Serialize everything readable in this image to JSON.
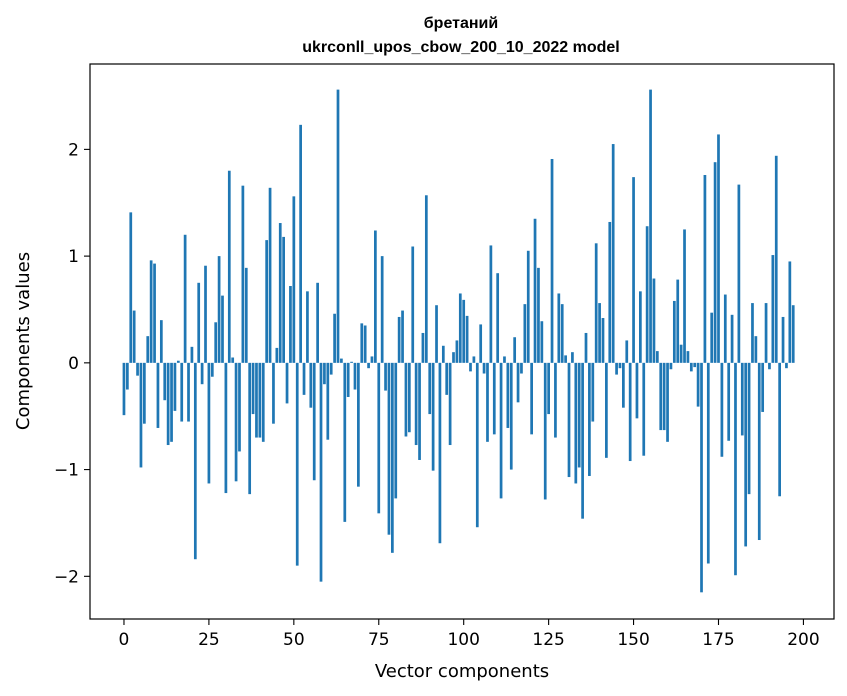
{
  "chart_data": {
    "type": "bar",
    "title_line1": "бретаний",
    "title_line2": "ukrconll_upos_cbow_200_10_2022 model",
    "xlabel": "Vector components",
    "ylabel": "Components values",
    "xlim": [
      -10,
      209
    ],
    "ylim": [
      -2.4,
      2.8
    ],
    "xticks": [
      0,
      25,
      50,
      75,
      100,
      125,
      150,
      175,
      200
    ],
    "xtick_labels": [
      "0",
      "25",
      "50",
      "75",
      "100",
      "125",
      "150",
      "175",
      "200"
    ],
    "yticks": [
      -2,
      -1,
      0,
      1,
      2
    ],
    "ytick_labels": [
      "−2",
      "−1",
      "0",
      "1",
      "2"
    ],
    "bar_color": "#1f77b4",
    "values": [
      -0.49,
      -0.25,
      1.41,
      0.49,
      -0.12,
      -0.98,
      -0.57,
      0.25,
      0.96,
      0.93,
      -0.61,
      0.4,
      -0.35,
      -0.77,
      -0.74,
      -0.45,
      0.02,
      -0.55,
      1.2,
      -0.55,
      0.15,
      -1.84,
      0.75,
      -0.2,
      0.91,
      -1.13,
      -0.13,
      0.38,
      1.0,
      0.63,
      -1.22,
      1.8,
      0.05,
      -1.11,
      -0.83,
      1.66,
      0.89,
      -1.23,
      -0.48,
      -0.7,
      -0.7,
      -0.74,
      1.15,
      1.64,
      -0.57,
      0.14,
      1.31,
      1.18,
      -0.38,
      0.72,
      1.56,
      -1.9,
      2.23,
      -0.3,
      0.67,
      -0.42,
      -1.1,
      0.75,
      -2.05,
      -0.2,
      -0.72,
      -0.11,
      0.46,
      2.56,
      0.04,
      -1.49,
      -0.32,
      0.01,
      -0.25,
      -1.16,
      0.37,
      0.35,
      -0.05,
      0.06,
      1.24,
      -1.41,
      1.0,
      -0.26,
      -1.61,
      -1.78,
      -1.27,
      0.43,
      0.49,
      -0.69,
      -0.65,
      1.09,
      -0.77,
      -0.91,
      0.28,
      1.57,
      -0.48,
      -1.01,
      0.54,
      -1.69,
      0.16,
      -0.3,
      -0.77,
      0.1,
      0.21,
      0.65,
      0.59,
      0.44,
      -0.08,
      0.06,
      -1.54,
      0.36,
      -0.1,
      -0.74,
      1.1,
      -0.67,
      0.84,
      -1.27,
      0.06,
      -0.61,
      -1.0,
      0.24,
      -0.37,
      -0.1,
      0.55,
      1.05,
      -0.67,
      1.35,
      0.89,
      0.39,
      -1.28,
      -0.48,
      1.91,
      -0.7,
      0.65,
      0.55,
      0.07,
      -1.07,
      0.1,
      -1.13,
      -0.98,
      -1.46,
      0.28,
      -1.06,
      -0.55,
      1.12,
      0.56,
      0.42,
      -0.89,
      1.32,
      2.05,
      -0.11,
      -0.05,
      -0.42,
      0.21,
      -0.92,
      1.74,
      -0.52,
      0.67,
      -0.87,
      1.28,
      2.56,
      0.79,
      0.11,
      -0.63,
      -0.63,
      -0.74,
      -0.06,
      0.58,
      0.78,
      0.17,
      1.25,
      0.11,
      -0.08,
      -0.04,
      -0.41,
      -2.15,
      1.76,
      -1.88,
      0.47,
      1.88,
      2.14,
      -0.88,
      0.64,
      -0.73,
      0.45,
      -1.99,
      1.67,
      -0.68,
      -1.72,
      -1.23,
      0.56,
      0.25,
      -1.66,
      -0.46,
      0.56,
      -0.06,
      1.01,
      1.94,
      -1.25,
      0.43,
      -0.05,
      0.95,
      0.54
    ]
  }
}
